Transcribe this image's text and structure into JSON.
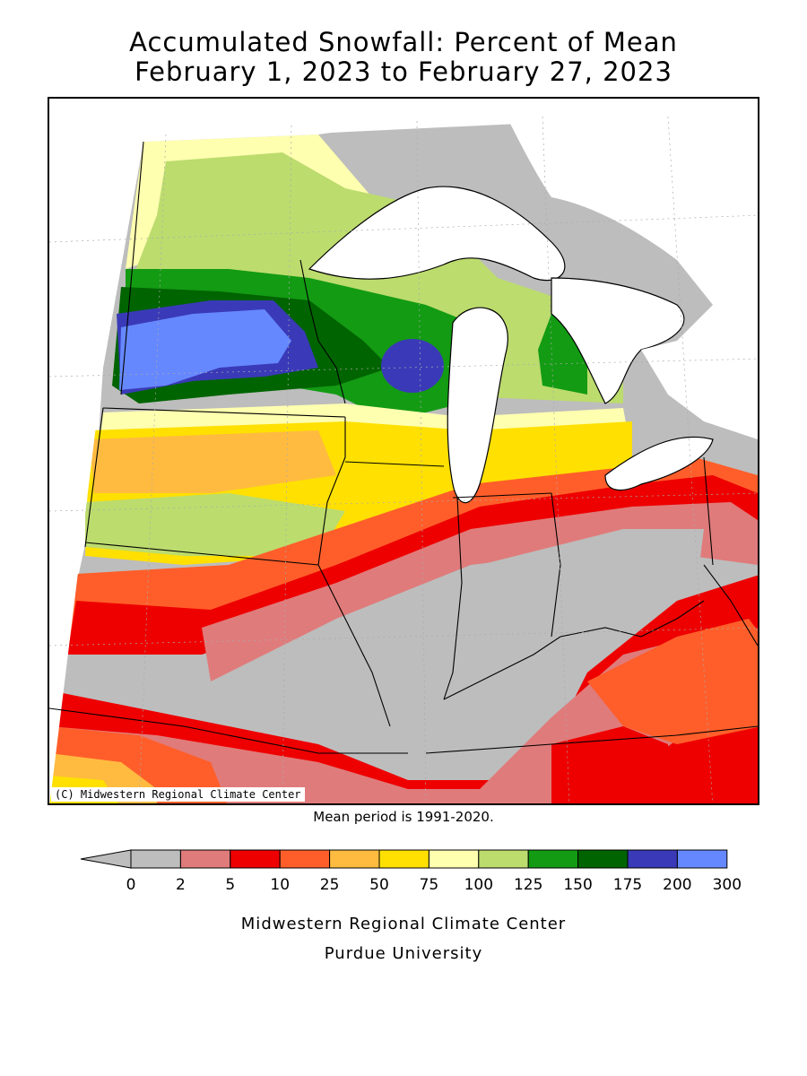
{
  "title_line1": "Accumulated Snowfall: Percent of Mean",
  "title_line2": "February 1, 2023 to February 27, 2023",
  "copyright": "(C) Midwestern Regional Climate Center",
  "mean_period": "Mean period is 1991-2020.",
  "footer_line1": "Midwestern Regional Climate Center",
  "footer_line2": "Purdue University",
  "legend": {
    "tick_labels": [
      "0",
      "2",
      "5",
      "10",
      "25",
      "50",
      "75",
      "100",
      "125",
      "150",
      "175",
      "200",
      "300"
    ],
    "bins": [
      {
        "from": "0",
        "to": "2",
        "color": "#bdbdbd"
      },
      {
        "from": "2",
        "to": "5",
        "color": "#e07b7b"
      },
      {
        "from": "5",
        "to": "10",
        "color": "#ee0000"
      },
      {
        "from": "10",
        "to": "25",
        "color": "#ff5e2a"
      },
      {
        "from": "25",
        "to": "50",
        "color": "#ffbb40"
      },
      {
        "from": "50",
        "to": "75",
        "color": "#ffe000"
      },
      {
        "from": "75",
        "to": "100",
        "color": "#ffffb0"
      },
      {
        "from": "100",
        "to": "125",
        "color": "#bcdc6e"
      },
      {
        "from": "125",
        "to": "150",
        "color": "#139b13"
      },
      {
        "from": "150",
        "to": "175",
        "color": "#006400"
      },
      {
        "from": "175",
        "to": "200",
        "color": "#3a3ab8"
      },
      {
        "from": "200",
        "to": "300",
        "color": "#6688ff"
      }
    ],
    "under_color": "#bdbdbd"
  },
  "map_colors": {
    "none": "#bdbdbd",
    "low": "#e07b7b",
    "red": "#ee0000",
    "orange": "#ff5e2a",
    "lightorange": "#ffbb40",
    "yellow": "#ffe000",
    "paleyellow": "#ffffb0",
    "lightgreen": "#bcdc6e",
    "green": "#139b13",
    "darkgreen": "#006400",
    "purple": "#3a3ab8",
    "blue": "#6688ff",
    "water": "#ffffff",
    "border": "#000000"
  }
}
